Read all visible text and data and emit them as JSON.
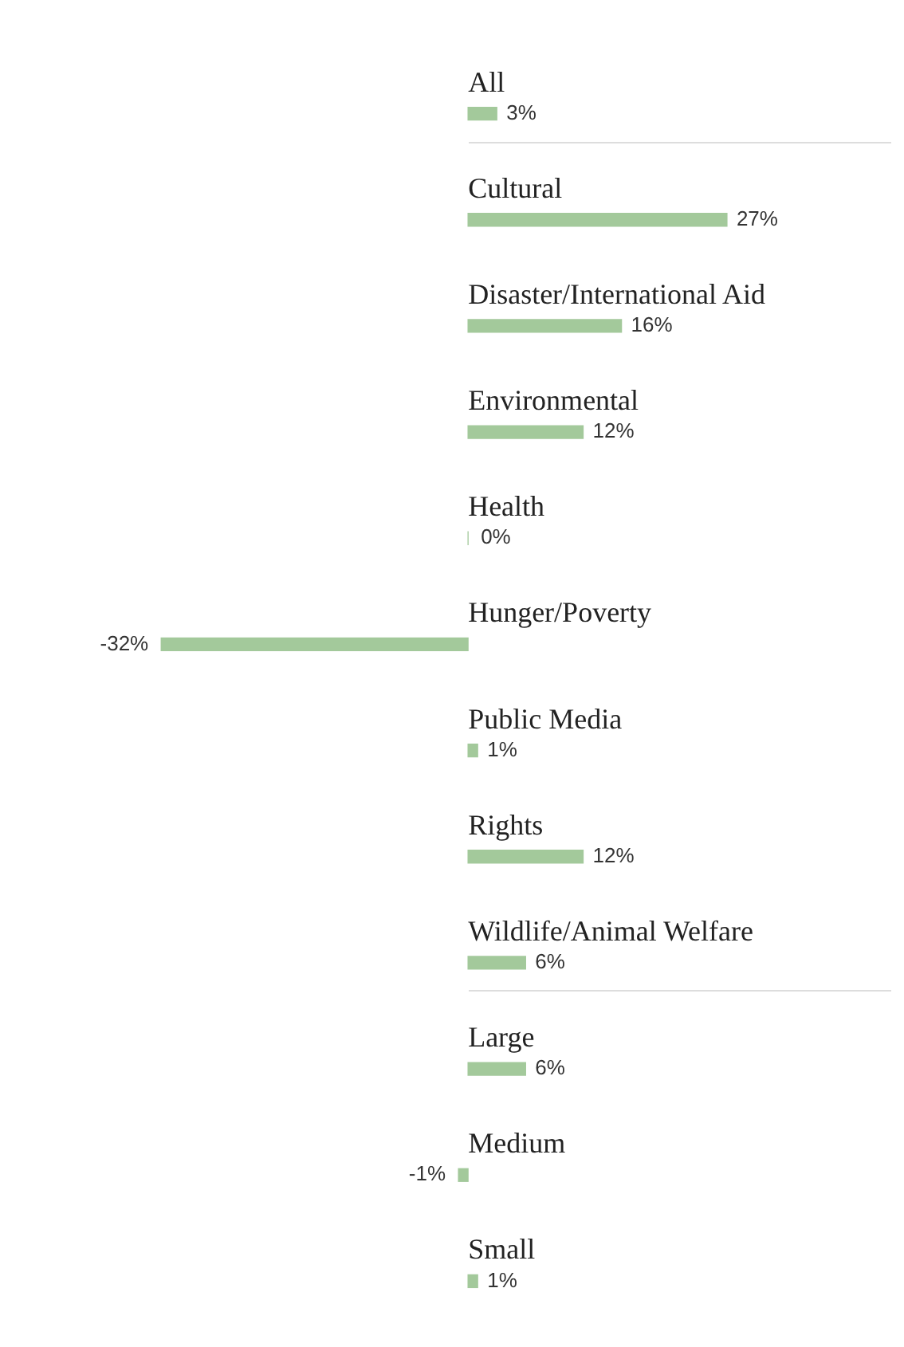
{
  "chart_data": {
    "type": "bar",
    "orientation": "horizontal",
    "categories": [
      "All",
      "Cultural",
      "Disaster/International Aid",
      "Environmental",
      "Health",
      "Hunger/Poverty",
      "Public Media",
      "Rights",
      "Wildlife/Animal Welfare",
      "Large",
      "Medium",
      "Small"
    ],
    "values": [
      3,
      27,
      16,
      12,
      0,
      -32,
      1,
      12,
      6,
      6,
      -1,
      1
    ],
    "value_labels": [
      "3%",
      "27%",
      "16%",
      "12%",
      "0%",
      "-32%",
      "1%",
      "12%",
      "6%",
      "6%",
      "-1%",
      "1%"
    ],
    "color": "#a3c99b"
  }
}
